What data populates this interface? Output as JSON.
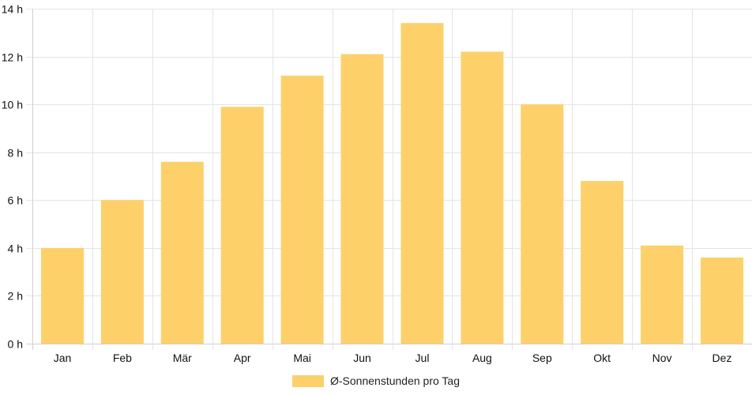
{
  "chart_data": {
    "type": "bar",
    "categories": [
      "Jan",
      "Feb",
      "Mär",
      "Apr",
      "Mai",
      "Jun",
      "Jul",
      "Aug",
      "Sep",
      "Okt",
      "Nov",
      "Dez"
    ],
    "series": [
      {
        "name": "Ø-Sonnenstunden pro Tag",
        "values": [
          4.0,
          6.0,
          7.6,
          9.9,
          11.2,
          12.1,
          13.4,
          12.2,
          10.0,
          6.8,
          4.1,
          3.6
        ],
        "color": "#fdd06a"
      }
    ],
    "y_ticks": [
      {
        "value": 0,
        "label": "0 h"
      },
      {
        "value": 2,
        "label": "2 h"
      },
      {
        "value": 4,
        "label": "4 h"
      },
      {
        "value": 6,
        "label": "6 h"
      },
      {
        "value": 8,
        "label": "8 h"
      },
      {
        "value": 10,
        "label": "10 h"
      },
      {
        "value": 12,
        "label": "12 h"
      },
      {
        "value": 14,
        "label": "14 h"
      }
    ],
    "ylim": [
      0,
      14
    ],
    "grid": true,
    "grid_color": "#e4e4e4",
    "axis_color": "#d0d0d0",
    "legend_position": "bottom-center",
    "title": "",
    "xlabel": "",
    "ylabel": ""
  }
}
